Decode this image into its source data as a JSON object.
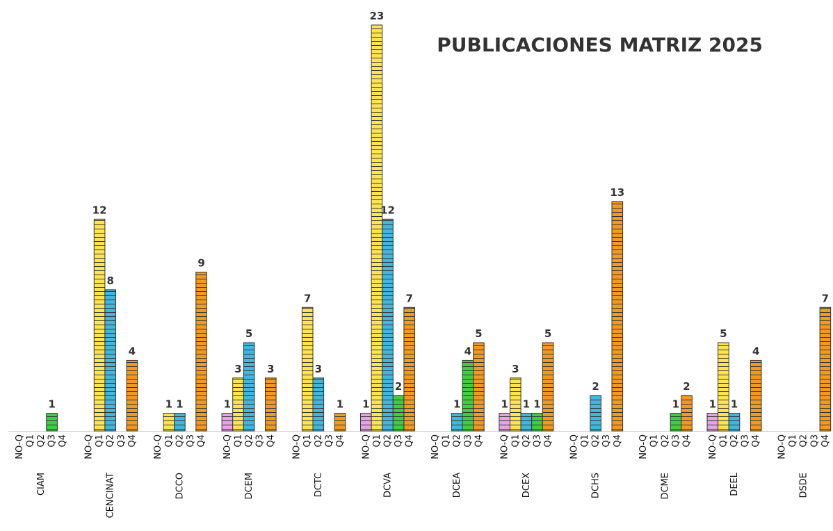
{
  "chart_data": {
    "type": "bar",
    "title": "PUBLICACIONES MATRIZ 2025",
    "subcategories": [
      "NO-Q",
      "Q1",
      "Q2",
      "Q3",
      "Q4"
    ],
    "groups": [
      {
        "name": "CIAM",
        "values": [
          0,
          0,
          0,
          1,
          0
        ]
      },
      {
        "name": "CENCINAT",
        "values": [
          0,
          12,
          8,
          0,
          4
        ]
      },
      {
        "name": "DCCO",
        "values": [
          0,
          1,
          1,
          0,
          9
        ]
      },
      {
        "name": "DCEM",
        "values": [
          1,
          3,
          5,
          0,
          3
        ]
      },
      {
        "name": "DCTC",
        "values": [
          0,
          7,
          3,
          0,
          1
        ]
      },
      {
        "name": "DCVA",
        "values": [
          1,
          23,
          12,
          2,
          7
        ]
      },
      {
        "name": "DCEA",
        "values": [
          0,
          0,
          1,
          4,
          5
        ]
      },
      {
        "name": "DCEX",
        "values": [
          1,
          3,
          1,
          1,
          5
        ]
      },
      {
        "name": "DCHS",
        "values": [
          0,
          0,
          2,
          0,
          13
        ]
      },
      {
        "name": "DCME",
        "values": [
          0,
          0,
          0,
          1,
          2
        ]
      },
      {
        "name": "DEEL",
        "values": [
          1,
          5,
          1,
          0,
          4
        ]
      },
      {
        "name": "DSDE",
        "values": [
          0,
          0,
          0,
          0,
          7
        ]
      }
    ],
    "colors": {
      "NO-Q": "#e6a3e6",
      "Q1": "#ffe44d",
      "Q2": "#3fb7e0",
      "Q3": "#3ecf3e",
      "Q4": "#f39a1e"
    },
    "ylim": [
      0,
      23
    ],
    "grid": false,
    "legend": "none",
    "xlabel": "",
    "ylabel": ""
  }
}
